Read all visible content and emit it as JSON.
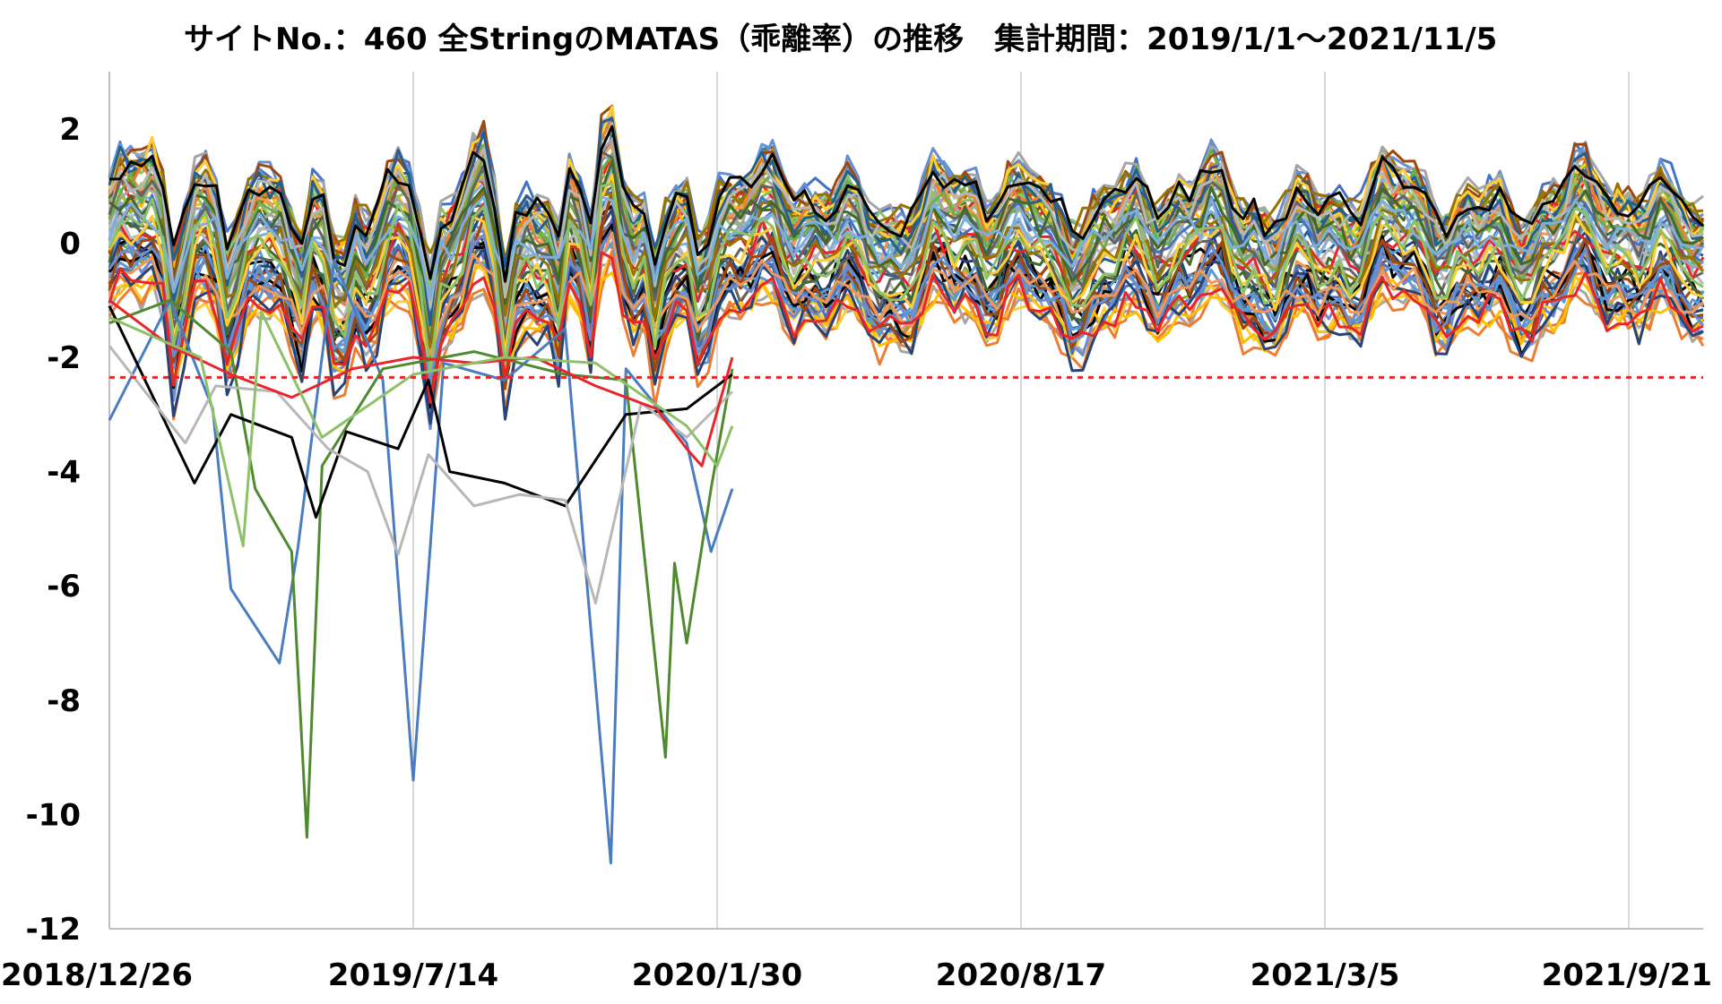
{
  "chart_data": {
    "type": "line",
    "title": "サイトNo.：460 全StringのMATAS（乖離率）の推移　集計期間：2019/1/1～2021/11/5",
    "xlabel": "",
    "ylabel": "",
    "x_ticks": [
      "2018/12/26",
      "2019/7/14",
      "2020/1/30",
      "2020/8/17",
      "2021/3/5",
      "2021/9/21"
    ],
    "x_range": [
      "2018/12/26",
      "2021/11/5"
    ],
    "ylim": [
      -12,
      3
    ],
    "y_ticks": [
      2,
      0,
      -2,
      -4,
      -6,
      -8,
      -10,
      -12
    ],
    "y_tick_labels": [
      "2",
      "0",
      "-2",
      "-4",
      "-6",
      "-8",
      "-10",
      "-12"
    ],
    "grid": "vertical",
    "legend": "none",
    "threshold": {
      "value": -2.35,
      "style": "dashed",
      "color": "#e8262a"
    },
    "series_count": 60,
    "palette": [
      "#4472c4",
      "#ed7d31",
      "#a5a5a5",
      "#ffc000",
      "#5b9bd5",
      "#70ad47",
      "#264478",
      "#9e480e",
      "#636363",
      "#997300",
      "#255e91",
      "#43682b",
      "#698ed0",
      "#f1975a",
      "#b7b7b7",
      "#ffcd33",
      "#7cafdd",
      "#8cc168",
      "#e8262a",
      "#000000"
    ],
    "highlighted_series": [
      {
        "color": "#4a7cc2",
        "values": [
          [
            0.0,
            -3.1
          ],
          [
            0.2,
            -1.0
          ],
          [
            0.34,
            -2.9
          ],
          [
            0.4,
            -6.05
          ],
          [
            0.56,
            -7.35
          ],
          [
            0.62,
            -5.35
          ],
          [
            0.74,
            -0.3
          ],
          [
            0.9,
            -2.4
          ],
          [
            1.0,
            -9.4
          ],
          [
            1.1,
            -2.1
          ],
          [
            1.3,
            -2.4
          ],
          [
            1.5,
            -1.5
          ],
          [
            1.65,
            -10.85
          ],
          [
            1.7,
            -2.2
          ],
          [
            1.9,
            -3.5
          ],
          [
            1.98,
            -5.4
          ],
          [
            2.05,
            -4.3
          ]
        ]
      },
      {
        "color": "#4f8a2f",
        "values": [
          [
            0.0,
            -1.4
          ],
          [
            0.2,
            -1.0
          ],
          [
            0.4,
            -1.9
          ],
          [
            0.48,
            -4.3
          ],
          [
            0.6,
            -5.4
          ],
          [
            0.65,
            -10.4
          ],
          [
            0.7,
            -3.9
          ],
          [
            0.9,
            -2.2
          ],
          [
            1.2,
            -1.9
          ],
          [
            1.5,
            -2.3
          ],
          [
            1.7,
            -2.4
          ],
          [
            1.83,
            -9.0
          ],
          [
            1.86,
            -5.6
          ],
          [
            1.9,
            -7.0
          ],
          [
            1.98,
            -4.3
          ],
          [
            2.05,
            -2.2
          ]
        ]
      },
      {
        "color": "#000000",
        "values": [
          [
            0.0,
            -1.1
          ],
          [
            0.28,
            -4.2
          ],
          [
            0.3,
            -4.0
          ],
          [
            0.4,
            -3.0
          ],
          [
            0.6,
            -3.4
          ],
          [
            0.68,
            -4.8
          ],
          [
            0.78,
            -3.3
          ],
          [
            0.95,
            -3.6
          ],
          [
            1.05,
            -2.4
          ],
          [
            1.12,
            -4.0
          ],
          [
            1.3,
            -4.2
          ],
          [
            1.5,
            -4.6
          ],
          [
            1.7,
            -3.0
          ],
          [
            1.9,
            -2.9
          ],
          [
            2.05,
            -2.3
          ]
        ]
      },
      {
        "color": "#b7b7b7",
        "values": [
          [
            0.0,
            -1.8
          ],
          [
            0.25,
            -3.5
          ],
          [
            0.35,
            -2.5
          ],
          [
            0.55,
            -2.6
          ],
          [
            0.72,
            -3.6
          ],
          [
            0.85,
            -4.0
          ],
          [
            0.95,
            -5.45
          ],
          [
            1.05,
            -3.7
          ],
          [
            1.2,
            -4.6
          ],
          [
            1.35,
            -4.4
          ],
          [
            1.5,
            -4.5
          ],
          [
            1.6,
            -6.3
          ],
          [
            1.75,
            -2.8
          ],
          [
            1.9,
            -3.4
          ],
          [
            2.05,
            -2.6
          ]
        ]
      },
      {
        "color": "#e8262a",
        "values": [
          [
            0.0,
            -1.0
          ],
          [
            0.2,
            -1.8
          ],
          [
            0.4,
            -2.3
          ],
          [
            0.6,
            -2.7
          ],
          [
            0.8,
            -2.2
          ],
          [
            1.0,
            -2.0
          ],
          [
            1.2,
            -2.1
          ],
          [
            1.4,
            -2.0
          ],
          [
            1.6,
            -2.5
          ],
          [
            1.8,
            -2.9
          ],
          [
            1.9,
            -3.6
          ],
          [
            1.95,
            -3.9
          ],
          [
            2.05,
            -2.0
          ]
        ]
      },
      {
        "color": "#8cc168",
        "values": [
          [
            0.0,
            -1.3
          ],
          [
            0.3,
            -2.0
          ],
          [
            0.44,
            -5.3
          ],
          [
            0.5,
            -1.2
          ],
          [
            0.7,
            -3.4
          ],
          [
            1.0,
            -2.3
          ],
          [
            1.3,
            -2.0
          ],
          [
            1.6,
            -2.1
          ],
          [
            1.9,
            -3.2
          ],
          [
            2.0,
            -3.9
          ],
          [
            2.05,
            -3.2
          ]
        ]
      }
    ]
  }
}
